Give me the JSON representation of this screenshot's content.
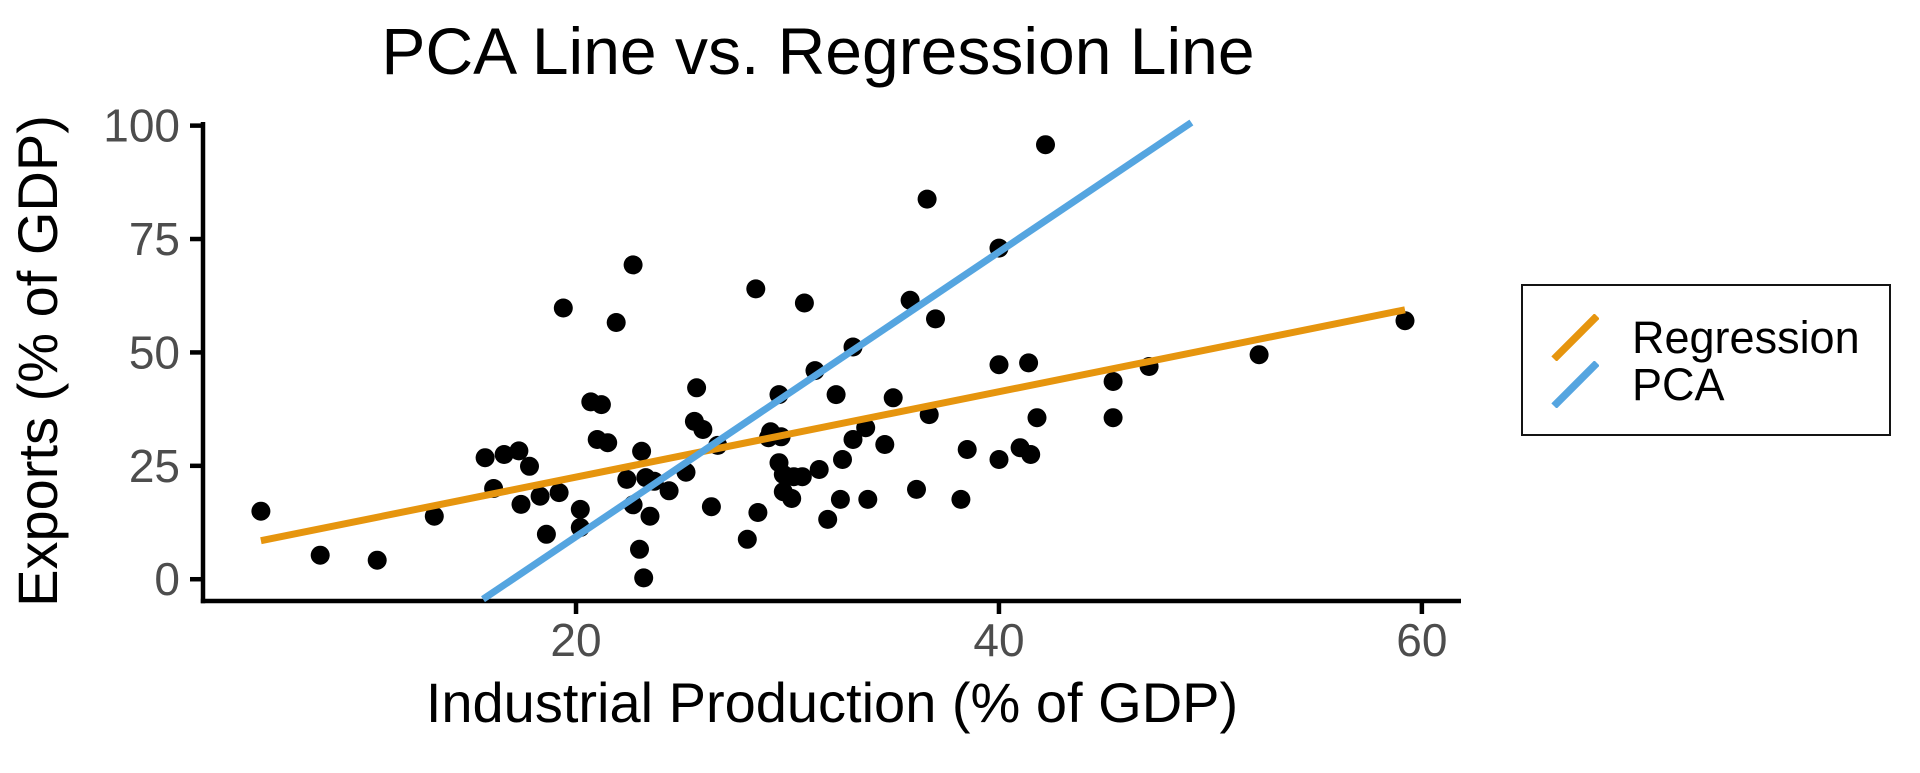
{
  "chart_data": {
    "type": "scatter",
    "title": "PCA Line vs. Regression Line",
    "xlabel": "Industrial Production (% of GDP)",
    "ylabel": "Exports (% of GDP)",
    "xlim": [
      2.36,
      61.85
    ],
    "ylim": [
      -4.8,
      100.8
    ],
    "xticks": [
      20,
      40,
      60
    ],
    "yticks": [
      0,
      25,
      50,
      75,
      100
    ],
    "grid": false,
    "legend_position": "right",
    "point_color": "#000000",
    "axis_color": "#000000",
    "tick_label_color": "#4D4D4D",
    "points": [
      [
        5.1,
        15.0
      ],
      [
        7.9,
        5.3
      ],
      [
        10.6,
        4.2
      ],
      [
        13.3,
        13.9
      ],
      [
        15.7,
        26.8
      ],
      [
        16.1,
        20.0
      ],
      [
        16.6,
        27.5
      ],
      [
        17.3,
        28.3
      ],
      [
        17.8,
        24.9
      ],
      [
        17.4,
        16.5
      ],
      [
        18.3,
        18.3
      ],
      [
        18.6,
        9.9
      ],
      [
        19.2,
        19.1
      ],
      [
        19.4,
        59.8
      ],
      [
        20.2,
        15.4
      ],
      [
        20.2,
        11.4
      ],
      [
        20.7,
        39.1
      ],
      [
        21.2,
        38.5
      ],
      [
        21.0,
        30.8
      ],
      [
        21.5,
        30.1
      ],
      [
        21.9,
        56.6
      ],
      [
        22.4,
        22.0
      ],
      [
        22.7,
        16.4
      ],
      [
        22.7,
        69.3
      ],
      [
        23.1,
        28.2
      ],
      [
        23.3,
        22.4
      ],
      [
        23.5,
        13.9
      ],
      [
        23.7,
        21.6
      ],
      [
        23.0,
        6.6
      ],
      [
        23.2,
        0.3
      ],
      [
        24.4,
        19.5
      ],
      [
        25.2,
        23.6
      ],
      [
        25.7,
        42.2
      ],
      [
        25.6,
        34.8
      ],
      [
        26.0,
        33.0
      ],
      [
        26.4,
        16.0
      ],
      [
        26.7,
        29.5
      ],
      [
        28.1,
        8.8
      ],
      [
        28.5,
        64.0
      ],
      [
        28.6,
        14.7
      ],
      [
        29.2,
        32.5
      ],
      [
        29.6,
        40.7
      ],
      [
        29.1,
        31.2
      ],
      [
        29.7,
        31.4
      ],
      [
        29.6,
        25.7
      ],
      [
        29.8,
        19.3
      ],
      [
        30.2,
        17.8
      ],
      [
        29.8,
        23.1
      ],
      [
        30.3,
        22.6
      ],
      [
        30.7,
        22.6
      ],
      [
        30.8,
        60.9
      ],
      [
        31.3,
        46.0
      ],
      [
        31.5,
        24.2
      ],
      [
        31.9,
        13.2
      ],
      [
        32.3,
        40.7
      ],
      [
        32.5,
        17.6
      ],
      [
        32.6,
        26.4
      ],
      [
        33.1,
        51.2
      ],
      [
        33.1,
        30.8
      ],
      [
        33.7,
        33.4
      ],
      [
        33.8,
        17.6
      ],
      [
        34.6,
        29.7
      ],
      [
        35.0,
        40.0
      ],
      [
        35.8,
        61.5
      ],
      [
        36.1,
        19.8
      ],
      [
        36.6,
        83.8
      ],
      [
        36.7,
        36.3
      ],
      [
        37.0,
        57.4
      ],
      [
        38.2,
        17.6
      ],
      [
        38.5,
        28.6
      ],
      [
        40.0,
        73.0
      ],
      [
        40.0,
        47.3
      ],
      [
        40.0,
        26.4
      ],
      [
        41.0,
        29.0
      ],
      [
        41.5,
        27.5
      ],
      [
        41.4,
        47.7
      ],
      [
        41.8,
        35.6
      ],
      [
        42.2,
        95.8
      ],
      [
        45.4,
        43.6
      ],
      [
        45.4,
        35.6
      ],
      [
        47.1,
        46.9
      ],
      [
        52.3,
        49.5
      ],
      [
        59.2,
        57.0
      ]
    ],
    "lines": [
      {
        "name": "Regression",
        "color": "#E6950E",
        "x": [
          5.1,
          59.2
        ],
        "y": [
          8.5,
          59.4
        ]
      },
      {
        "name": "PCA",
        "color": "#55A5E0",
        "x": [
          15.6,
          49.1
        ],
        "y": [
          -4.4,
          100.7
        ]
      }
    ]
  }
}
